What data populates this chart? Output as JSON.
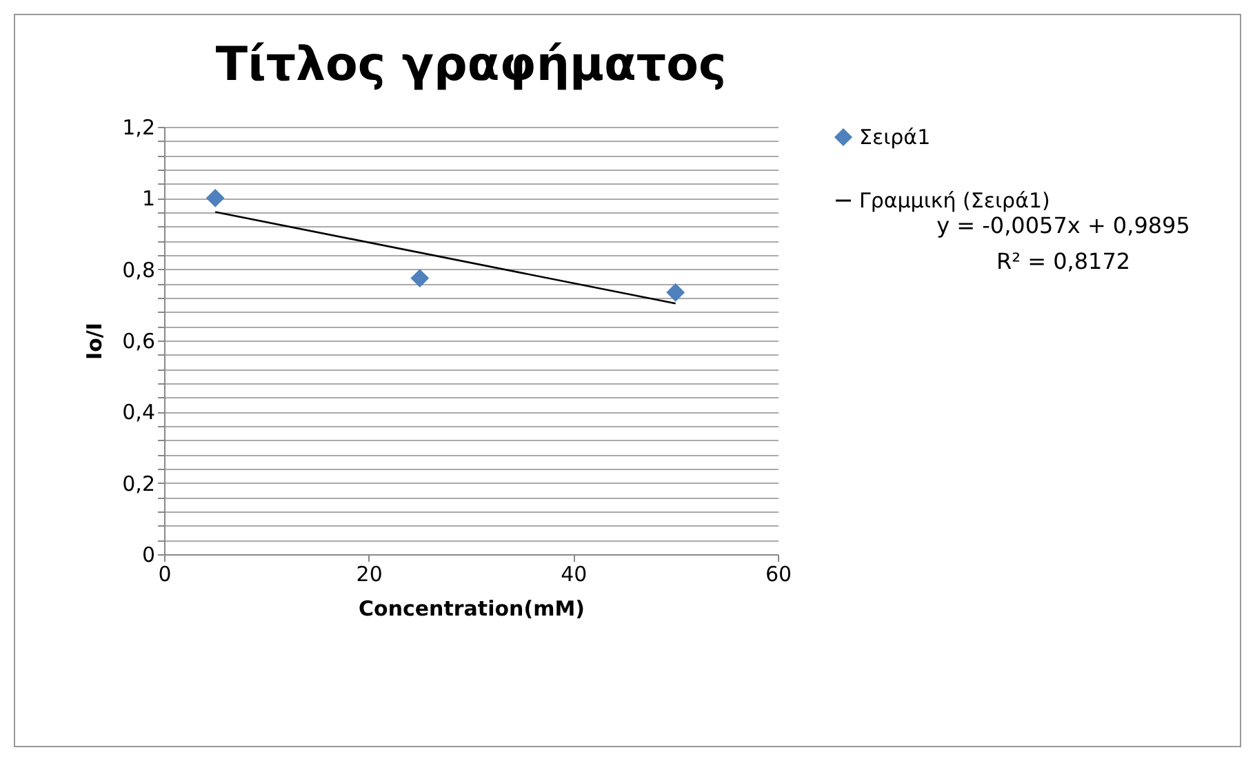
{
  "chart_data": {
    "type": "scatter",
    "title": "Τίτλος γραφήματος",
    "xlabel": "Concentration(mM)",
    "ylabel": "Io/I",
    "x": [
      5,
      25,
      50
    ],
    "series": [
      {
        "name": "Σειρά1",
        "color": "#4f81bd",
        "values": [
          1.0,
          0.775,
          0.735
        ],
        "marker": "diamond"
      },
      {
        "name": "Γραμμική (Σειρά1)",
        "type": "line",
        "color": "#000000",
        "x": [
          5,
          50
        ],
        "values": [
          0.961,
          0.704
        ],
        "marker": "none",
        "line_style": "solid"
      }
    ],
    "xlim": [
      0,
      60
    ],
    "xticks": [
      0,
      20,
      40,
      60
    ],
    "ylim": [
      0,
      1.2
    ],
    "yticks": [
      0,
      {
        "value": 0.04,
        "label": null
      },
      {
        "value": 0.08,
        "label": null
      },
      {
        "value": 0.12,
        "label": null
      },
      {
        "value": 0.16,
        "label": null
      },
      {
        "value": 0.2,
        "label": "0,2"
      },
      {
        "value": 0.24,
        "label": null
      },
      {
        "value": 0.28,
        "label": null
      },
      {
        "value": 0.32,
        "label": null
      },
      {
        "value": 0.36,
        "label": null
      },
      {
        "value": 0.4,
        "label": "0,4"
      },
      {
        "value": 0.44,
        "label": null
      },
      {
        "value": 0.48,
        "label": null
      },
      {
        "value": 0.52,
        "label": null
      },
      {
        "value": 0.56,
        "label": null
      },
      {
        "value": 0.6,
        "label": "0,6"
      },
      {
        "value": 0.64,
        "label": null
      },
      {
        "value": 0.68,
        "label": null
      },
      {
        "value": 0.72,
        "label": null
      },
      {
        "value": 0.76,
        "label": null
      },
      {
        "value": 0.8,
        "label": "0,8"
      },
      {
        "value": 0.84,
        "label": null
      },
      {
        "value": 0.88,
        "label": null
      },
      {
        "value": 0.92,
        "label": null
      },
      {
        "value": 0.96,
        "label": null
      },
      1,
      {
        "value": 1.04,
        "label": null
      },
      {
        "value": 1.08,
        "label": null
      },
      {
        "value": 1.12,
        "label": null
      },
      {
        "value": 1.16,
        "label": null
      },
      {
        "value": 1.2,
        "label": "1,2"
      }
    ],
    "grid": "y",
    "legend": "right",
    "annotations": [
      "y = -0,0057x + 0,9895",
      "R² = 0,8172"
    ]
  }
}
